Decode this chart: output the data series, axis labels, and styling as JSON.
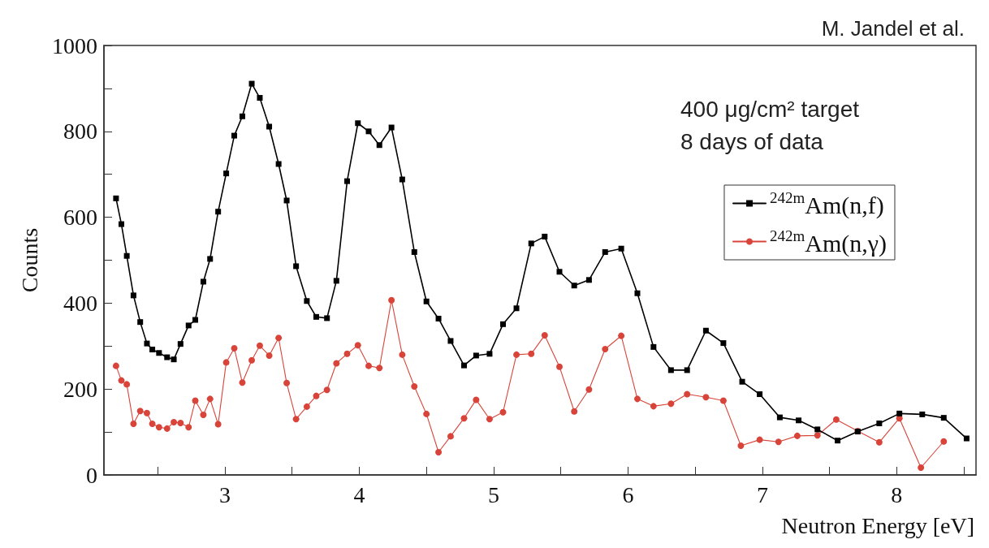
{
  "chart_data": {
    "type": "line",
    "xlabel": "Neutron Energy [eV]",
    "ylabel": "Counts",
    "annotations": [
      "M. Jandel et al.",
      "400 μg/cm² target",
      "8 days of data"
    ],
    "xlim": [
      2.1,
      8.59
    ],
    "xticks": [
      {
        "value": 2.5,
        "label": null
      },
      3,
      {
        "value": 3.5,
        "label": null
      },
      4,
      {
        "value": 4.5,
        "label": null
      },
      5,
      {
        "value": 5.5,
        "label": null
      },
      6,
      {
        "value": 6.5,
        "label": null
      },
      7,
      {
        "value": 7.5,
        "label": null
      },
      8,
      {
        "value": 8.5,
        "label": null
      }
    ],
    "ylim": [
      0,
      1000
    ],
    "yticks": [
      0,
      {
        "value": 100,
        "label": null
      },
      200,
      {
        "value": 300,
        "label": null
      },
      400,
      {
        "value": 500,
        "label": null
      },
      600,
      {
        "value": 700,
        "label": null
      },
      800,
      {
        "value": 900,
        "label": null
      },
      1000
    ],
    "grid": false,
    "legend": "top right",
    "line_style": "solid",
    "series": [
      {
        "name": "$^{242m}$Am(n,f)",
        "color": "#000000",
        "marker": "square",
        "x": [
          2.19,
          2.23,
          2.27,
          2.32,
          2.37,
          2.42,
          2.46,
          2.51,
          2.57,
          2.62,
          2.67,
          2.73,
          2.78,
          2.84,
          2.89,
          2.95,
          3.01,
          3.07,
          3.13,
          3.2,
          3.26,
          3.33,
          3.4,
          3.46,
          3.53,
          3.61,
          3.68,
          3.76,
          3.83,
          3.91,
          3.99,
          4.07,
          4.15,
          4.24,
          4.32,
          4.41,
          4.5,
          4.59,
          4.68,
          4.78,
          4.87,
          4.97,
          5.07,
          5.17,
          5.28,
          5.38,
          5.49,
          5.6,
          5.71,
          5.83,
          5.95,
          6.07,
          6.19,
          6.32,
          6.44,
          6.58,
          6.71,
          6.85,
          6.98,
          7.13,
          7.27,
          7.41,
          7.56,
          7.71,
          7.87,
          8.02,
          8.19,
          8.35,
          8.52
        ],
        "values": [
          644,
          584,
          510,
          418,
          356,
          306,
          292,
          284,
          274,
          269,
          305,
          348,
          361,
          450,
          503,
          613,
          702,
          790,
          835,
          911,
          878,
          811,
          724,
          639,
          486,
          405,
          368,
          365,
          452,
          684,
          819,
          800,
          768,
          809,
          688,
          519,
          404,
          364,
          312,
          255,
          278,
          282,
          351,
          388,
          539,
          555,
          473,
          441,
          454,
          519,
          527,
          423,
          298,
          244,
          244,
          336,
          307,
          217,
          188,
          134,
          127,
          106,
          80,
          101,
          120,
          143,
          141,
          133,
          85
        ]
      },
      {
        "name": "$^{242m}$Am(n,γ)",
        "color": "#d9443a",
        "marker": "circle",
        "x": [
          2.19,
          2.23,
          2.27,
          2.32,
          2.37,
          2.42,
          2.46,
          2.51,
          2.57,
          2.62,
          2.67,
          2.73,
          2.78,
          2.84,
          2.89,
          2.95,
          3.01,
          3.07,
          3.13,
          3.2,
          3.26,
          3.33,
          3.4,
          3.46,
          3.53,
          3.61,
          3.68,
          3.76,
          3.83,
          3.91,
          3.99,
          4.07,
          4.15,
          4.24,
          4.32,
          4.41,
          4.5,
          4.59,
          4.68,
          4.78,
          4.87,
          4.97,
          5.07,
          5.17,
          5.28,
          5.38,
          5.49,
          5.6,
          5.71,
          5.83,
          5.95,
          6.07,
          6.19,
          6.32,
          6.44,
          6.58,
          6.71,
          6.84,
          6.98,
          7.12,
          7.26,
          7.41,
          7.55,
          7.71,
          7.87,
          8.02,
          8.18,
          8.35
        ],
        "values": [
          254,
          220,
          211,
          119,
          149,
          144,
          119,
          111,
          108,
          123,
          121,
          111,
          173,
          140,
          177,
          118,
          262,
          295,
          215,
          267,
          301,
          278,
          319,
          214,
          130,
          159,
          184,
          198,
          260,
          282,
          302,
          254,
          249,
          407,
          280,
          206,
          142,
          53,
          90,
          132,
          175,
          130,
          146,
          280,
          282,
          325,
          252,
          148,
          199,
          293,
          324,
          177,
          160,
          166,
          188,
          181,
          173,
          68,
          82,
          77,
          91,
          92,
          129,
          102,
          76,
          132,
          17,
          78
        ]
      }
    ]
  }
}
